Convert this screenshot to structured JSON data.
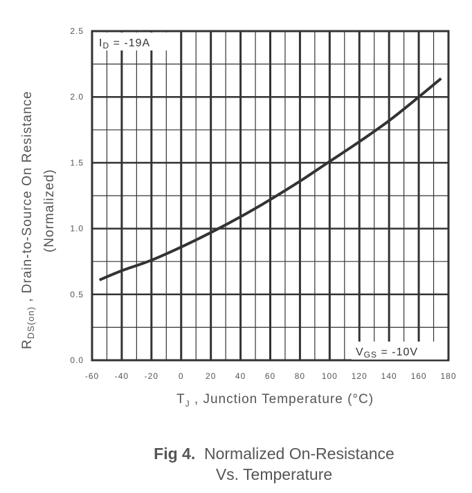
{
  "chart_data": {
    "type": "line",
    "xlabel_main": "T",
    "xlabel_sub": "J",
    "xlabel_rest": " , Junction Temperature (°C)",
    "ylabel_line1_main": "R",
    "ylabel_line1_sub": "DS(on)",
    "ylabel_line1_rest": " ,  Drain-to-Source On Resistance",
    "ylabel_line2": "(Normalized)",
    "xlim": [
      -60,
      180
    ],
    "ylim": [
      0.0,
      2.5
    ],
    "x_ticks": [
      "-60",
      "-40",
      "-20",
      "0",
      "20",
      "40",
      "60",
      "80",
      "100",
      "120",
      "140",
      "160",
      "180"
    ],
    "y_ticks": [
      "0.0",
      "0.5",
      "1.0",
      "1.5",
      "2.0",
      "2.5"
    ],
    "grid": true,
    "series": [
      {
        "x": [
          -55,
          -40,
          -20,
          0,
          20,
          40,
          60,
          80,
          100,
          120,
          140,
          160,
          175
        ],
        "y": [
          0.61,
          0.68,
          0.76,
          0.86,
          0.97,
          1.09,
          1.22,
          1.36,
          1.51,
          1.66,
          1.82,
          2.0,
          2.14
        ]
      }
    ],
    "annotations": {
      "id_main": "I",
      "id_sub": "D",
      "id_rest": " = -19A",
      "vgs_main": "V",
      "vgs_sub": "GS",
      "vgs_rest": " = -10V"
    }
  },
  "caption": {
    "fig_label": "Fig 4.",
    "line1": "Normalized On-Resistance",
    "line2": "Vs. Temperature"
  }
}
